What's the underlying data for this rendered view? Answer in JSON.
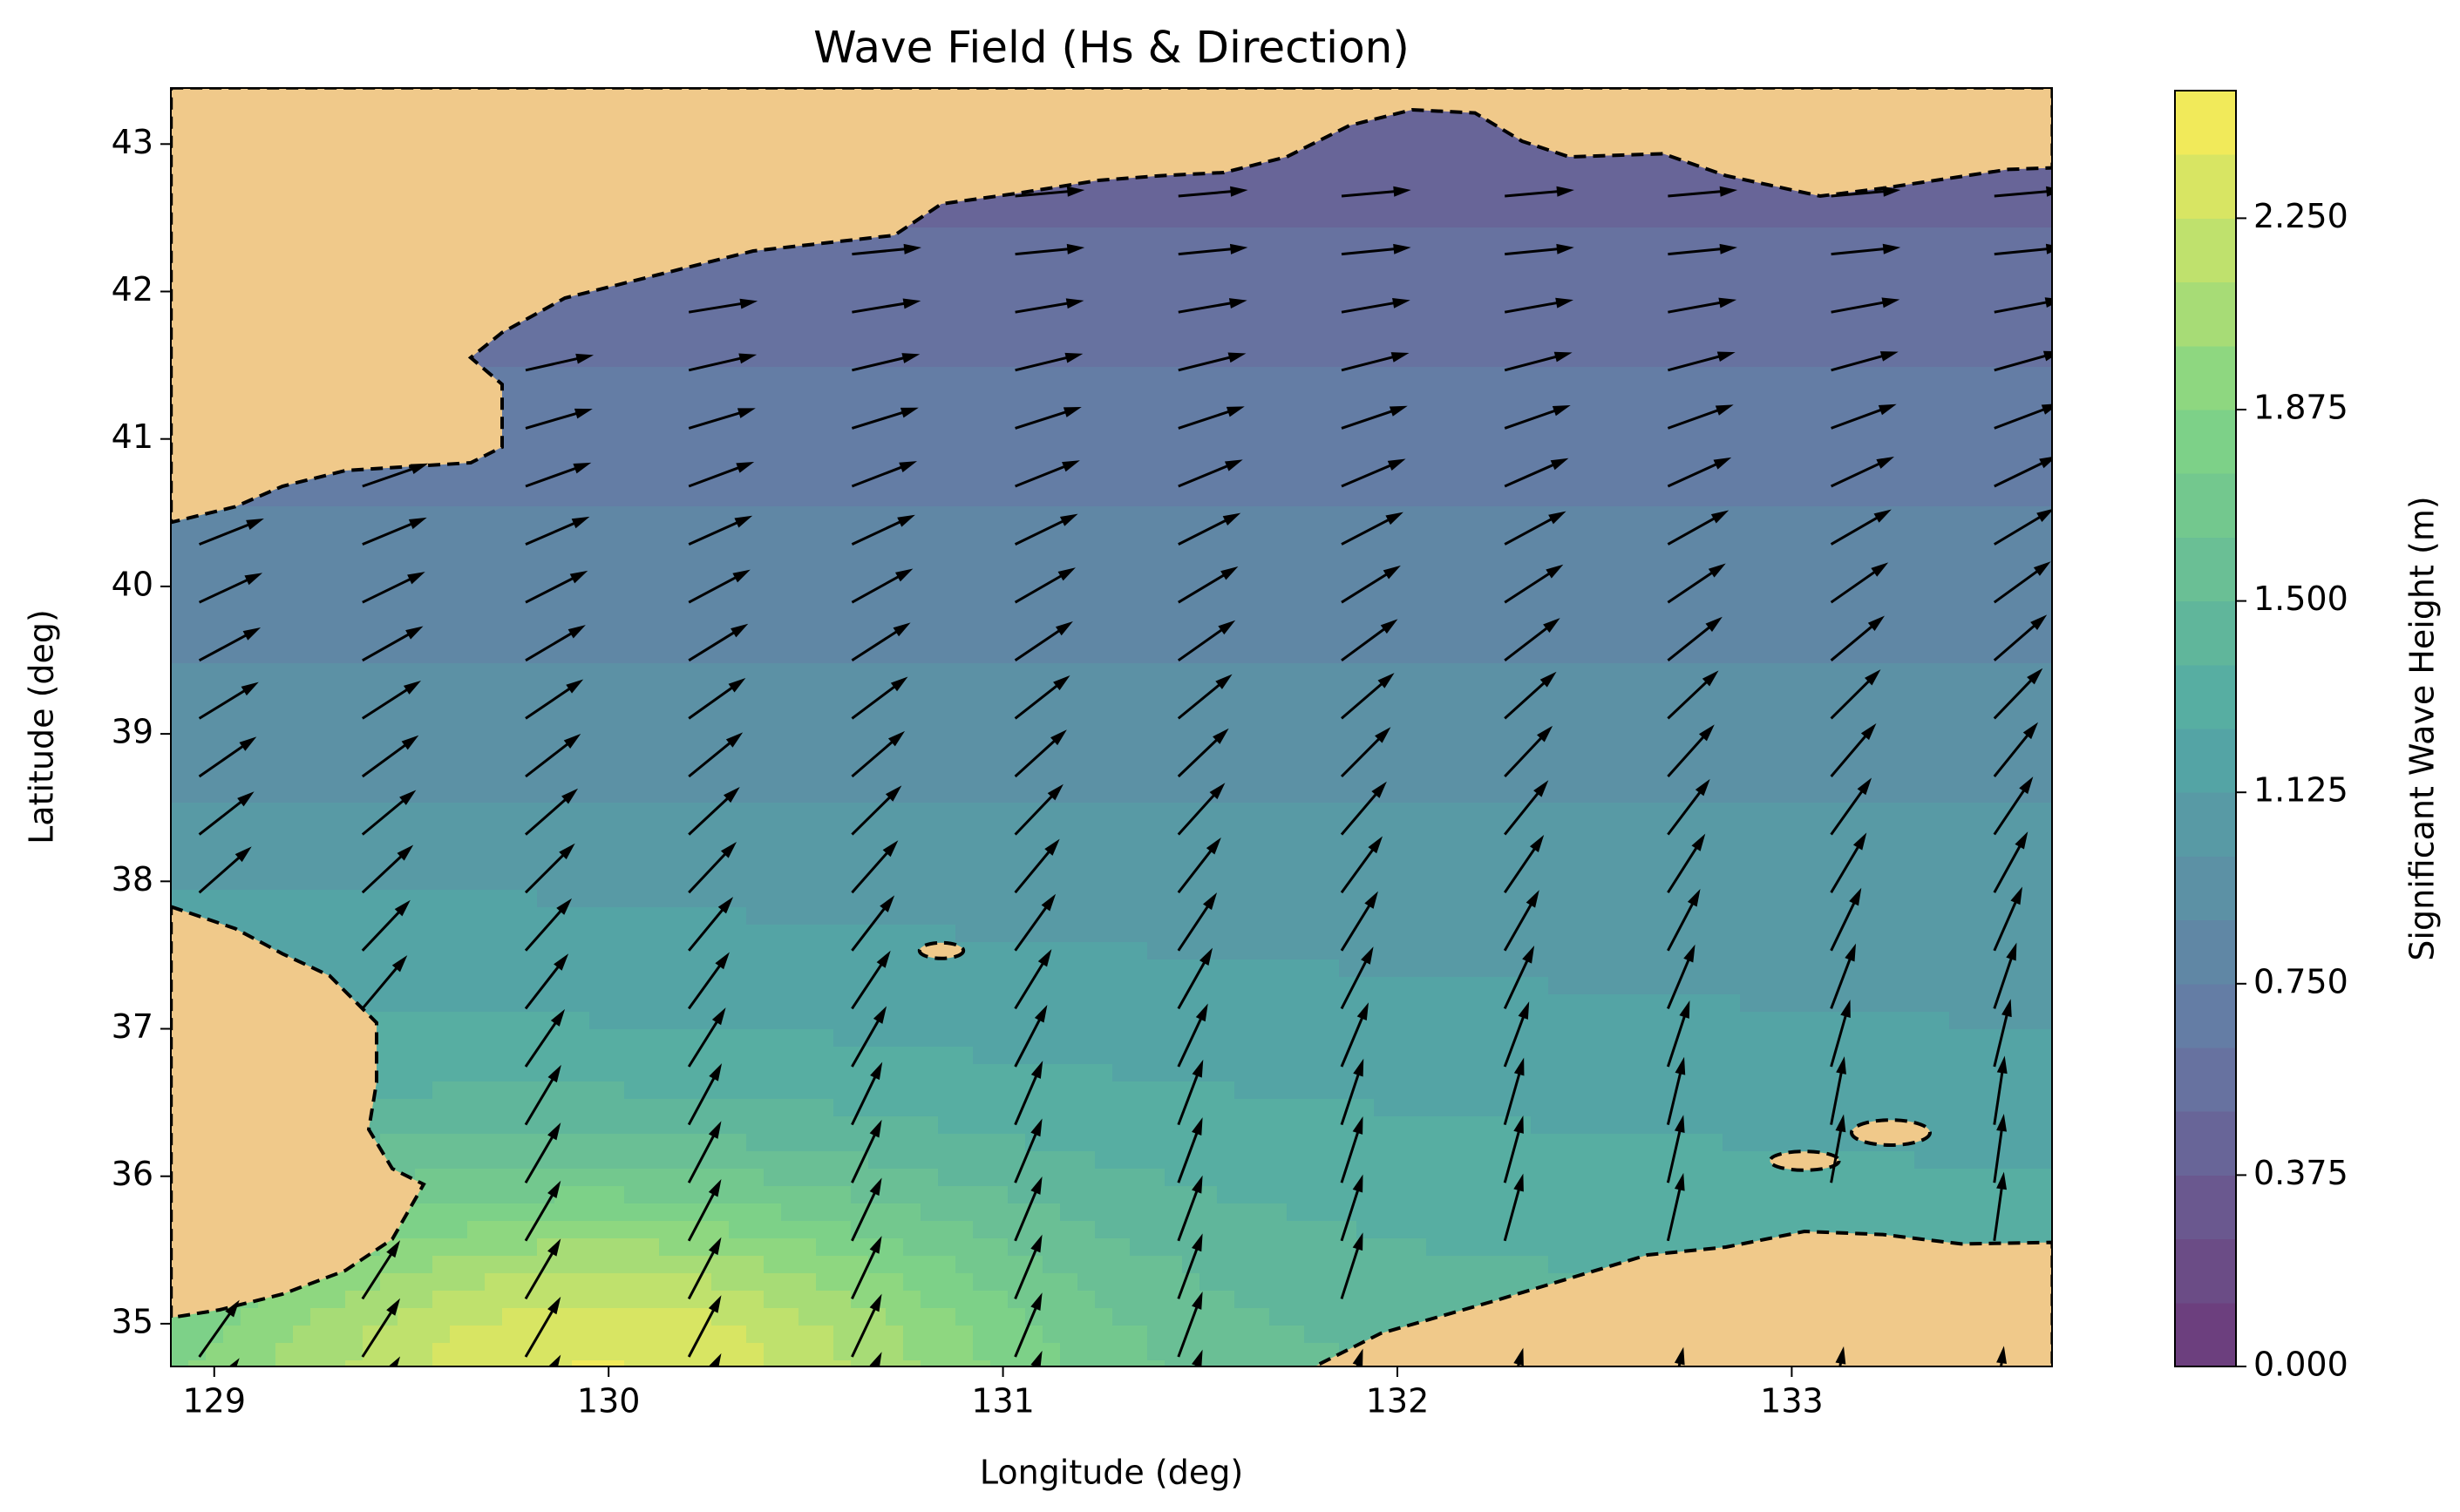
{
  "chart_data": {
    "type": "contour",
    "title": "Wave Field (Hs & Direction)",
    "xlabel": "Longitude (deg)",
    "ylabel": "Latitude (deg)",
    "xlim": [
      128.89,
      133.66
    ],
    "ylim": [
      34.71,
      43.38
    ],
    "xticks": [
      129,
      130,
      131,
      132,
      133
    ],
    "yticks": [
      35,
      36,
      37,
      38,
      39,
      40,
      41,
      42,
      43
    ],
    "colorbar": {
      "label": "Significant Wave Height (m)",
      "lim": [
        0,
        2.5
      ],
      "colormap": "viridis",
      "ticks": [
        {
          "value": 0,
          "label": "0.000"
        },
        {
          "value": 0.375,
          "label": "0.375"
        },
        {
          "value": 0.75,
          "label": "0.750"
        },
        {
          "value": 1.125,
          "label": "1.125"
        },
        {
          "value": 1.5,
          "label": "1.500"
        },
        {
          "value": 1.875,
          "label": "1.875"
        },
        {
          "value": 2.25,
          "label": "2.250"
        }
      ]
    },
    "land_color": "#f0c98a"
  }
}
